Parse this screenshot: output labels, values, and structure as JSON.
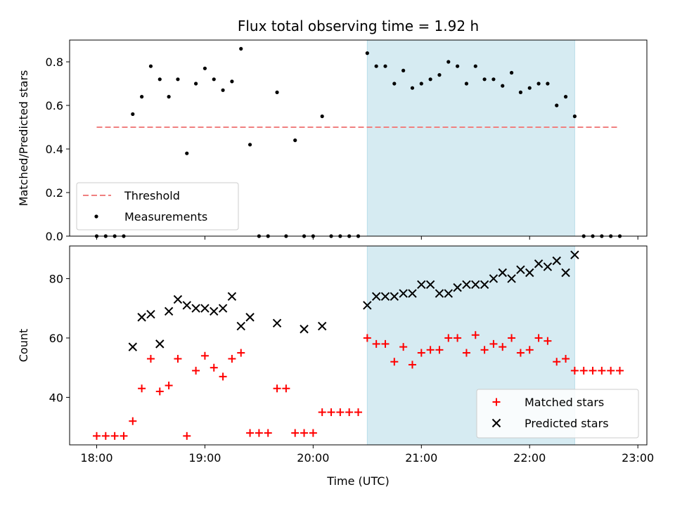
{
  "chart_data": [
    {
      "type": "scatter",
      "title": "Flux total observing time = 1.92 h",
      "xlabel": "",
      "ylabel": "Matched/Predicted stars",
      "xlim": [
        "17:45",
        "23:05"
      ],
      "ylim": [
        0,
        0.9
      ],
      "x_ticks": [
        "18:00",
        "19:00",
        "20:00",
        "21:00",
        "22:00",
        "23:00"
      ],
      "y_ticks": [
        0.0,
        0.2,
        0.4,
        0.6,
        0.8
      ],
      "y_tick_labels": [
        "0.0",
        "0.2",
        "0.4",
        "0.6",
        "0.8"
      ],
      "shaded_region": {
        "start": "20:30",
        "end": "22:25",
        "color": "#add8e6"
      },
      "legend": {
        "position": "lower-left",
        "entries": [
          "Threshold",
          "Measurements"
        ]
      },
      "threshold": {
        "name": "Threshold",
        "y": 0.5,
        "x_start": "18:00",
        "x_end": "22:50",
        "color": "#f08080",
        "style": "dashed"
      },
      "series": [
        {
          "name": "Measurements",
          "color": "#000000",
          "marker": "dot",
          "points": [
            [
              "18:00",
              0
            ],
            [
              "18:05",
              0
            ],
            [
              "18:10",
              0
            ],
            [
              "18:15",
              0
            ],
            [
              "18:20",
              0.56
            ],
            [
              "18:25",
              0.64
            ],
            [
              "18:30",
              0.78
            ],
            [
              "18:35",
              0.72
            ],
            [
              "18:40",
              0.64
            ],
            [
              "18:45",
              0.72
            ],
            [
              "18:50",
              0.38
            ],
            [
              "18:55",
              0.7
            ],
            [
              "19:00",
              0.77
            ],
            [
              "19:05",
              0.72
            ],
            [
              "19:10",
              0.67
            ],
            [
              "19:15",
              0.71
            ],
            [
              "19:20",
              0.86
            ],
            [
              "19:25",
              0.42
            ],
            [
              "19:30",
              0
            ],
            [
              "19:35",
              0
            ],
            [
              "19:40",
              0.66
            ],
            [
              "19:45",
              0
            ],
            [
              "19:50",
              0.44
            ],
            [
              "19:55",
              0
            ],
            [
              "20:00",
              0
            ],
            [
              "20:05",
              0.55
            ],
            [
              "20:10",
              0
            ],
            [
              "20:15",
              0
            ],
            [
              "20:20",
              0
            ],
            [
              "20:25",
              0
            ],
            [
              "20:30",
              0.84
            ],
            [
              "20:35",
              0.78
            ],
            [
              "20:40",
              0.78
            ],
            [
              "20:45",
              0.7
            ],
            [
              "20:50",
              0.76
            ],
            [
              "20:55",
              0.68
            ],
            [
              "21:00",
              0.7
            ],
            [
              "21:05",
              0.72
            ],
            [
              "21:10",
              0.74
            ],
            [
              "21:15",
              0.8
            ],
            [
              "21:20",
              0.78
            ],
            [
              "21:25",
              0.7
            ],
            [
              "21:30",
              0.78
            ],
            [
              "21:35",
              0.72
            ],
            [
              "21:40",
              0.72
            ],
            [
              "21:45",
              0.69
            ],
            [
              "21:50",
              0.75
            ],
            [
              "21:55",
              0.66
            ],
            [
              "22:00",
              0.68
            ],
            [
              "22:05",
              0.7
            ],
            [
              "22:10",
              0.7
            ],
            [
              "22:15",
              0.6
            ],
            [
              "22:20",
              0.64
            ],
            [
              "22:25",
              0.55
            ],
            [
              "22:30",
              0
            ],
            [
              "22:35",
              0
            ],
            [
              "22:40",
              0
            ],
            [
              "22:45",
              0
            ],
            [
              "22:50",
              0
            ]
          ]
        }
      ]
    },
    {
      "type": "scatter",
      "title": "",
      "xlabel": "Time (UTC)",
      "ylabel": "Count",
      "xlim": [
        "17:45",
        "23:05"
      ],
      "ylim": [
        24,
        91
      ],
      "x_ticks": [
        "18:00",
        "19:00",
        "20:00",
        "21:00",
        "22:00",
        "23:00"
      ],
      "y_ticks": [
        40,
        60,
        80
      ],
      "shaded_region": {
        "start": "20:30",
        "end": "22:25",
        "color": "#add8e6"
      },
      "legend": {
        "position": "lower-right",
        "entries": [
          "Matched stars",
          "Predicted stars"
        ]
      },
      "series": [
        {
          "name": "Matched stars",
          "color": "#ff0000",
          "marker": "plus",
          "points": [
            [
              "18:00",
              27
            ],
            [
              "18:05",
              27
            ],
            [
              "18:10",
              27
            ],
            [
              "18:15",
              27
            ],
            [
              "18:20",
              32
            ],
            [
              "18:25",
              43
            ],
            [
              "18:30",
              53
            ],
            [
              "18:35",
              42
            ],
            [
              "18:40",
              44
            ],
            [
              "18:45",
              53
            ],
            [
              "18:50",
              27
            ],
            [
              "18:55",
              49
            ],
            [
              "19:00",
              54
            ],
            [
              "19:05",
              50
            ],
            [
              "19:10",
              47
            ],
            [
              "19:15",
              53
            ],
            [
              "19:20",
              55
            ],
            [
              "19:25",
              28
            ],
            [
              "19:30",
              28
            ],
            [
              "19:35",
              28
            ],
            [
              "19:40",
              43
            ],
            [
              "19:45",
              43
            ],
            [
              "19:50",
              28
            ],
            [
              "19:55",
              28
            ],
            [
              "20:00",
              28
            ],
            [
              "20:05",
              35
            ],
            [
              "20:10",
              35
            ],
            [
              "20:15",
              35
            ],
            [
              "20:20",
              35
            ],
            [
              "20:25",
              35
            ],
            [
              "20:30",
              60
            ],
            [
              "20:35",
              58
            ],
            [
              "20:40",
              58
            ],
            [
              "20:45",
              52
            ],
            [
              "20:50",
              57
            ],
            [
              "20:55",
              51
            ],
            [
              "21:00",
              55
            ],
            [
              "21:05",
              56
            ],
            [
              "21:10",
              56
            ],
            [
              "21:15",
              60
            ],
            [
              "21:20",
              60
            ],
            [
              "21:25",
              55
            ],
            [
              "21:30",
              61
            ],
            [
              "21:35",
              56
            ],
            [
              "21:40",
              58
            ],
            [
              "21:45",
              57
            ],
            [
              "21:50",
              60
            ],
            [
              "21:55",
              55
            ],
            [
              "22:00",
              56
            ],
            [
              "22:05",
              60
            ],
            [
              "22:10",
              59
            ],
            [
              "22:15",
              52
            ],
            [
              "22:20",
              53
            ],
            [
              "22:25",
              49
            ],
            [
              "22:30",
              49
            ],
            [
              "22:35",
              49
            ],
            [
              "22:40",
              49
            ],
            [
              "22:45",
              49
            ],
            [
              "22:50",
              49
            ]
          ]
        },
        {
          "name": "Predicted stars",
          "color": "#000000",
          "marker": "x",
          "points": [
            [
              "18:20",
              57
            ],
            [
              "18:25",
              67
            ],
            [
              "18:30",
              68
            ],
            [
              "18:35",
              58
            ],
            [
              "18:40",
              69
            ],
            [
              "18:45",
              73
            ],
            [
              "18:50",
              71
            ],
            [
              "18:55",
              70
            ],
            [
              "19:00",
              70
            ],
            [
              "19:05",
              69
            ],
            [
              "19:10",
              70
            ],
            [
              "19:15",
              74
            ],
            [
              "19:20",
              64
            ],
            [
              "19:25",
              67
            ],
            [
              "19:40",
              65
            ],
            [
              "19:55",
              63
            ],
            [
              "20:05",
              64
            ],
            [
              "20:30",
              71
            ],
            [
              "20:35",
              74
            ],
            [
              "20:40",
              74
            ],
            [
              "20:45",
              74
            ],
            [
              "20:50",
              75
            ],
            [
              "20:55",
              75
            ],
            [
              "21:00",
              78
            ],
            [
              "21:05",
              78
            ],
            [
              "21:10",
              75
            ],
            [
              "21:15",
              75
            ],
            [
              "21:20",
              77
            ],
            [
              "21:25",
              78
            ],
            [
              "21:30",
              78
            ],
            [
              "21:35",
              78
            ],
            [
              "21:40",
              80
            ],
            [
              "21:45",
              82
            ],
            [
              "21:50",
              80
            ],
            [
              "21:55",
              83
            ],
            [
              "22:00",
              82
            ],
            [
              "22:05",
              85
            ],
            [
              "22:10",
              84
            ],
            [
              "22:15",
              86
            ],
            [
              "22:20",
              82
            ],
            [
              "22:25",
              88
            ]
          ]
        }
      ]
    }
  ]
}
